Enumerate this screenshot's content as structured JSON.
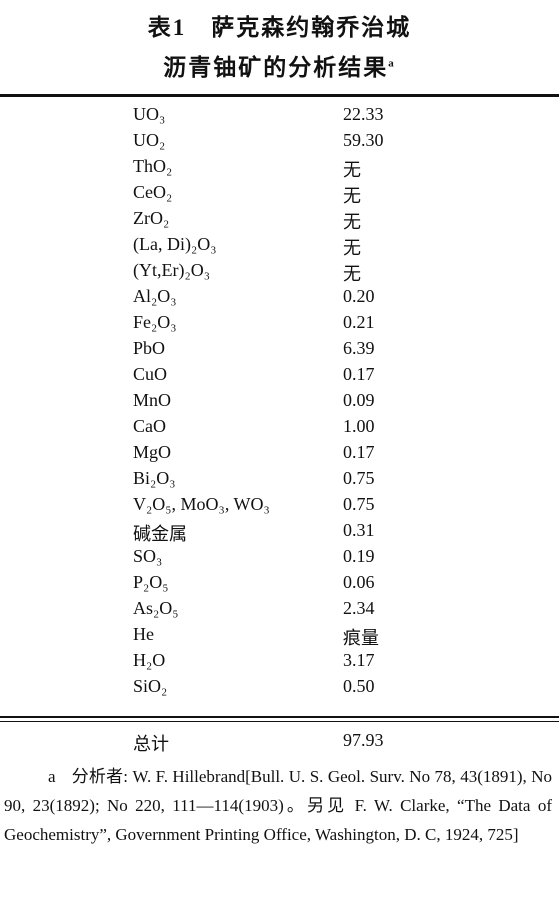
{
  "header": {
    "title": "表1　萨克森约翰乔治城",
    "subtitle": "沥青铀矿的分析结果",
    "subtitle_note": "a"
  },
  "table": {
    "rows": [
      [
        "UO₃",
        "22.33"
      ],
      [
        "UO₂",
        "59.30"
      ],
      [
        "ThO₂",
        "无"
      ],
      [
        "CeO₂",
        "无"
      ],
      [
        "ZrO₂",
        "无"
      ],
      [
        "(La, Di)₂O₃",
        "无"
      ],
      [
        "(Yt,Er)₂O₃",
        "无"
      ],
      [
        "Al₂O₃",
        "0.20"
      ],
      [
        "Fe₂O₃",
        "0.21"
      ],
      [
        "PbO",
        "6.39"
      ],
      [
        "CuO",
        "0.17"
      ],
      [
        "MnO",
        "0.09"
      ],
      [
        "CaO",
        "1.00"
      ],
      [
        "MgO",
        "0.17"
      ],
      [
        "Bi₂O₃",
        "0.75"
      ],
      [
        "V₂O₅, MoO₃, WO₃",
        "0.75"
      ],
      [
        "碱金属",
        "0.31"
      ],
      [
        "SO₃",
        "0.19"
      ],
      [
        "P₂O₅",
        "0.06"
      ],
      [
        "As₂O₅",
        "2.34"
      ],
      [
        "He",
        "痕量"
      ],
      [
        "H₂O",
        "3.17"
      ],
      [
        "SiO₂",
        "0.50"
      ]
    ],
    "total": [
      "总计",
      "97.93"
    ]
  },
  "footnote": {
    "label": "a",
    "text": "分析者: W. F. Hillebrand[Bull. U. S. Geol. Surv. No 78, 43(1891), No 90, 23(1892); No 220, 111—114(1903)。另见 F. W. Clarke, “The Data of Geochemistry”, Government Printing Office, Washington, D. C, 1924, 725]"
  }
}
